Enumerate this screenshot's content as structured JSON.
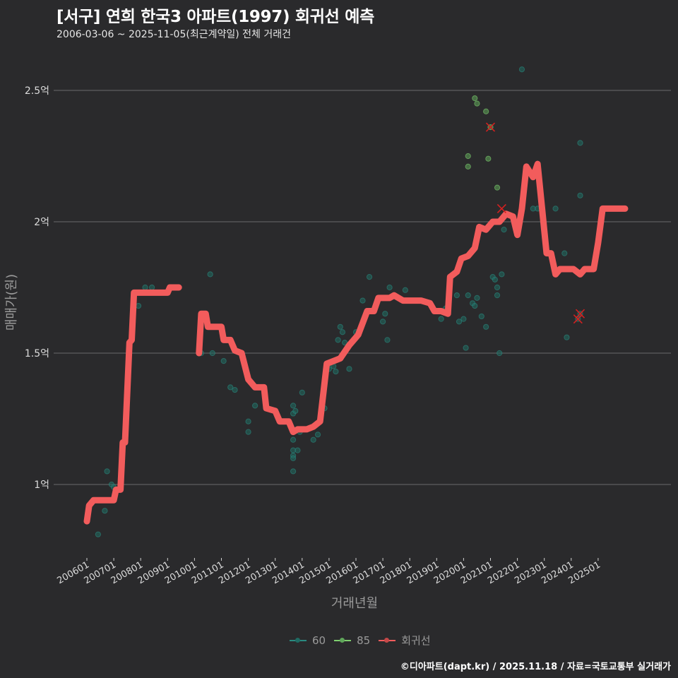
{
  "header": {
    "title": "[서구] 연희 한국3 아파트(1997) 회귀선 예측",
    "subtitle": "2006-03-06 ~ 2025-11-05(최근계약일) 전체 거래건"
  },
  "colors": {
    "background": "#2a2a2c",
    "grid": "#6b6b6b",
    "series_60": "#2a8a80",
    "series_85": "#7fcf6f",
    "regression": "#f25c5c",
    "cancel_mark": "#d42020"
  },
  "legend": {
    "items": [
      {
        "label": "60",
        "color": "#2a8a80"
      },
      {
        "label": "85",
        "color": "#7fcf6f"
      },
      {
        "label": "회귀선",
        "color": "#f25c5c"
      }
    ]
  },
  "caption": "©디아파트(dapt.kr) / 2025.11.18 / 자료=국토교통부 실거래가",
  "chart_data": {
    "type": "scatter",
    "title": "[서구] 연희 한국3 아파트(1997) 회귀선 예측",
    "subtitle": "2006-03-06 ~ 2025-11-05(최근계약일) 전체 거래건",
    "xlabel": "거래년월",
    "ylabel": "매매가(원)",
    "y_unit": "억",
    "ylim": [
      0.75,
      2.65
    ],
    "y_ticks": [
      {
        "value": 1.0,
        "label": "1억"
      },
      {
        "value": 1.5,
        "label": "1.5억"
      },
      {
        "value": 2.0,
        "label": "2억"
      },
      {
        "value": 2.5,
        "label": "2.5억"
      }
    ],
    "x_ticks": [
      "200601",
      "200701",
      "200801",
      "200901",
      "201001",
      "201101",
      "201201",
      "201301",
      "201401",
      "201501",
      "201601",
      "201701",
      "201801",
      "201901",
      "202001",
      "202101",
      "202201",
      "202301",
      "202401",
      "202501"
    ],
    "grid": true,
    "legend_position": "bottom",
    "series": [
      {
        "name": "60",
        "kind": "points",
        "points": [
          [
            "2006-06",
            0.81
          ],
          [
            "2006-09",
            0.9
          ],
          [
            "2006-10",
            1.05
          ],
          [
            "2006-12",
            1.0
          ],
          [
            "2007-01",
            0.99
          ],
          [
            "2007-12",
            1.68
          ],
          [
            "2008-03",
            1.75
          ],
          [
            "2008-06",
            1.75
          ],
          [
            "2010-04",
            1.5
          ],
          [
            "2010-08",
            1.8
          ],
          [
            "2010-09",
            1.5
          ],
          [
            "2011-01",
            1.6
          ],
          [
            "2011-02",
            1.47
          ],
          [
            "2011-05",
            1.37
          ],
          [
            "2011-07",
            1.36
          ],
          [
            "2012-01",
            1.24
          ],
          [
            "2012-01",
            1.2
          ],
          [
            "2012-04",
            1.3
          ],
          [
            "2013-09",
            1.3
          ],
          [
            "2013-09",
            1.27
          ],
          [
            "2013-10",
            1.28
          ],
          [
            "2013-09",
            1.17
          ],
          [
            "2013-09",
            1.13
          ],
          [
            "2013-09",
            1.11
          ],
          [
            "2013-09",
            1.1
          ],
          [
            "2013-09",
            1.05
          ],
          [
            "2013-11",
            1.13
          ],
          [
            "2013-12",
            1.2
          ],
          [
            "2014-01",
            1.35
          ],
          [
            "2014-06",
            1.17
          ],
          [
            "2014-08",
            1.19
          ],
          [
            "2014-11",
            1.29
          ],
          [
            "2015-01",
            1.44
          ],
          [
            "2015-03",
            1.45
          ],
          [
            "2015-04",
            1.43
          ],
          [
            "2015-05",
            1.55
          ],
          [
            "2015-06",
            1.6
          ],
          [
            "2015-07",
            1.58
          ],
          [
            "2015-08",
            1.54
          ],
          [
            "2015-10",
            1.44
          ],
          [
            "2016-01",
            1.58
          ],
          [
            "2016-04",
            1.7
          ],
          [
            "2016-07",
            1.79
          ],
          [
            "2017-01",
            1.62
          ],
          [
            "2017-02",
            1.65
          ],
          [
            "2017-03",
            1.55
          ],
          [
            "2017-04",
            1.75
          ],
          [
            "2017-11",
            1.74
          ],
          [
            "2019-03",
            1.63
          ],
          [
            "2019-05",
            1.67
          ],
          [
            "2019-10",
            1.72
          ],
          [
            "2019-11",
            1.62
          ],
          [
            "2020-01",
            1.63
          ],
          [
            "2020-02",
            1.52
          ],
          [
            "2020-03",
            1.72
          ],
          [
            "2020-05",
            1.69
          ],
          [
            "2020-06",
            1.68
          ],
          [
            "2020-07",
            1.71
          ],
          [
            "2020-09",
            1.64
          ],
          [
            "2020-11",
            1.6
          ],
          [
            "2021-02",
            1.79
          ],
          [
            "2021-03",
            1.78
          ],
          [
            "2021-04",
            1.75
          ],
          [
            "2021-04",
            1.72
          ],
          [
            "2021-05",
            1.5
          ],
          [
            "2021-06",
            1.8
          ],
          [
            "2021-07",
            1.97
          ],
          [
            "2022-08",
            2.05
          ],
          [
            "2022-10",
            2.05
          ],
          [
            "2023-06",
            2.05
          ],
          [
            "2023-10",
            1.88
          ],
          [
            "2023-11",
            1.56
          ],
          [
            "2024-04",
            1.63
          ],
          [
            "2024-05",
            2.3
          ],
          [
            "2024-05",
            2.1
          ],
          [
            "2022-03",
            2.58
          ],
          [
            "2024-05",
            1.65
          ]
        ]
      },
      {
        "name": "85",
        "kind": "points",
        "points": [
          [
            "2020-03",
            2.25
          ],
          [
            "2020-03",
            2.21
          ],
          [
            "2020-06",
            2.47
          ],
          [
            "2020-07",
            2.45
          ],
          [
            "2020-11",
            2.42
          ],
          [
            "2021-01",
            2.36
          ],
          [
            "2021-04",
            2.13
          ],
          [
            "2020-12",
            2.24
          ]
        ]
      },
      {
        "name": "회귀선",
        "kind": "line",
        "points": [
          [
            "2006-01",
            0.86
          ],
          [
            "2006-02",
            0.92
          ],
          [
            "2006-04",
            0.94
          ],
          [
            "2007-01",
            0.94
          ],
          [
            "2007-02",
            0.98
          ],
          [
            "2007-04",
            0.98
          ],
          [
            "2007-05",
            1.16
          ],
          [
            "2007-06",
            1.16
          ],
          [
            "2007-08",
            1.54
          ],
          [
            "2007-09",
            1.55
          ],
          [
            "2007-10",
            1.73
          ],
          [
            "2008-01",
            1.73
          ],
          [
            "2009-01",
            1.73
          ],
          [
            "2009-02",
            1.75
          ],
          [
            "2009-06",
            1.75
          ]
        ],
        "points_segment2": [
          [
            "2010-03",
            1.5
          ],
          [
            "2010-04",
            1.65
          ],
          [
            "2010-06",
            1.65
          ],
          [
            "2010-07",
            1.6
          ],
          [
            "2011-01",
            1.6
          ],
          [
            "2011-02",
            1.55
          ],
          [
            "2011-05",
            1.55
          ],
          [
            "2011-07",
            1.51
          ],
          [
            "2011-10",
            1.5
          ],
          [
            "2012-01",
            1.4
          ],
          [
            "2012-04",
            1.37
          ],
          [
            "2012-08",
            1.37
          ],
          [
            "2012-09",
            1.29
          ],
          [
            "2013-01",
            1.28
          ],
          [
            "2013-03",
            1.24
          ],
          [
            "2013-07",
            1.24
          ],
          [
            "2013-09",
            1.2
          ],
          [
            "2013-11",
            1.21
          ],
          [
            "2014-03",
            1.21
          ],
          [
            "2014-06",
            1.22
          ],
          [
            "2014-09",
            1.24
          ],
          [
            "2014-12",
            1.46
          ],
          [
            "2015-03",
            1.47
          ],
          [
            "2015-06",
            1.48
          ],
          [
            "2015-10",
            1.53
          ],
          [
            "2016-02",
            1.57
          ],
          [
            "2016-06",
            1.66
          ],
          [
            "2016-09",
            1.66
          ],
          [
            "2016-11",
            1.71
          ],
          [
            "2017-04",
            1.71
          ],
          [
            "2017-06",
            1.72
          ],
          [
            "2017-10",
            1.7
          ],
          [
            "2018-02",
            1.7
          ],
          [
            "2018-06",
            1.7
          ],
          [
            "2018-10",
            1.69
          ],
          [
            "2018-12",
            1.66
          ],
          [
            "2019-03",
            1.66
          ],
          [
            "2019-06",
            1.65
          ],
          [
            "2019-07",
            1.79
          ],
          [
            "2019-10",
            1.81
          ],
          [
            "2019-12",
            1.86
          ],
          [
            "2020-03",
            1.87
          ],
          [
            "2020-06",
            1.9
          ],
          [
            "2020-08",
            1.98
          ],
          [
            "2020-11",
            1.97
          ],
          [
            "2021-02",
            2.0
          ],
          [
            "2021-05",
            2.0
          ],
          [
            "2021-08",
            2.03
          ],
          [
            "2021-11",
            2.02
          ],
          [
            "2022-01",
            1.95
          ],
          [
            "2022-03",
            2.05
          ],
          [
            "2022-05",
            2.21
          ],
          [
            "2022-08",
            2.17
          ],
          [
            "2022-10",
            2.22
          ],
          [
            "2023-02",
            1.88
          ],
          [
            "2023-04",
            1.88
          ],
          [
            "2023-06",
            1.8
          ],
          [
            "2023-08",
            1.82
          ],
          [
            "2024-02",
            1.82
          ],
          [
            "2024-05",
            1.8
          ],
          [
            "2024-07",
            1.82
          ],
          [
            "2024-11",
            1.82
          ],
          [
            "2025-01",
            1.92
          ],
          [
            "2025-03",
            2.05
          ],
          [
            "2025-06",
            2.05
          ],
          [
            "2026-01",
            2.05
          ]
        ]
      }
    ],
    "cancelled_marks": [
      [
        "2021-01",
        2.36
      ],
      [
        "2021-06",
        2.05
      ],
      [
        "2024-04",
        1.63
      ],
      [
        "2024-05",
        1.65
      ]
    ]
  }
}
